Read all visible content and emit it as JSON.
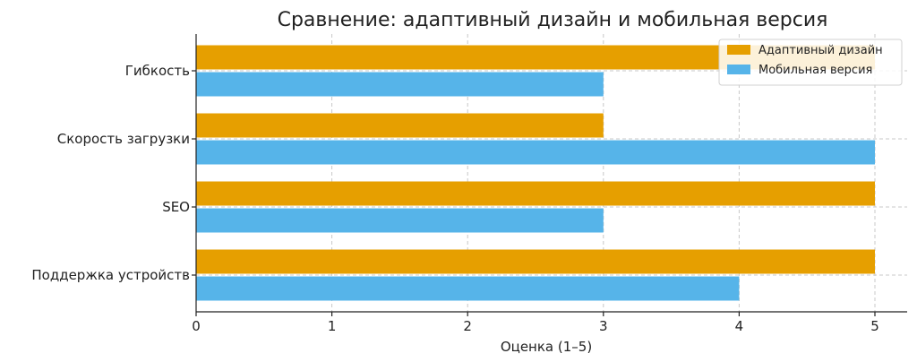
{
  "chart_data": {
    "type": "bar",
    "orientation": "horizontal",
    "title": "Сравнение: адаптивный дизайн и мобильная версия",
    "xlabel": "Оценка (1–5)",
    "ylabel": "",
    "categories": [
      "Гибкость",
      "Скорость загрузки",
      "SEO",
      "Поддержка устройств"
    ],
    "series": [
      {
        "name": "Адаптивный дизайн",
        "color": "#E69F00",
        "values": [
          5,
          3,
          5,
          5
        ]
      },
      {
        "name": "Мобильная версия",
        "color": "#56B4E9",
        "values": [
          3,
          5,
          3,
          4
        ]
      }
    ],
    "xlim": [
      0,
      5.25
    ],
    "xticks": [
      0,
      1,
      2,
      3,
      4,
      5
    ],
    "grid": true,
    "legend_position": "top-right"
  }
}
